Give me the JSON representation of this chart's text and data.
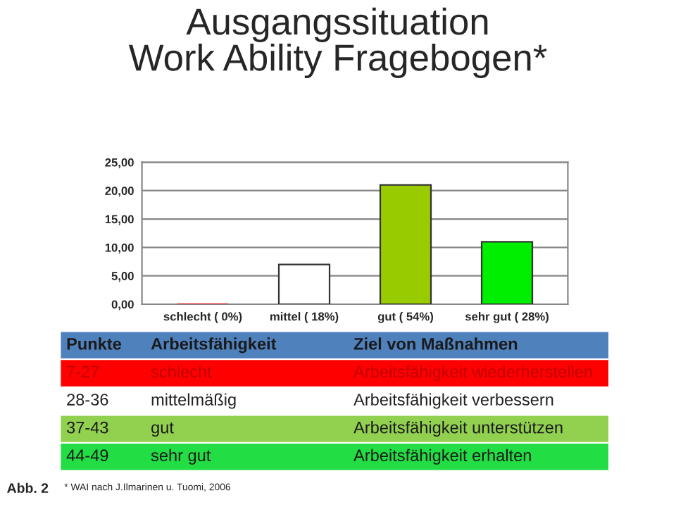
{
  "chart_data": {
    "type": "bar",
    "title": "Ausgangssituation\nWork Ability Fragebogen*",
    "categories": [
      "schlecht ( 0%)",
      "mittel ( 18%)",
      "gut ( 54%)",
      "sehr gut ( 28%)"
    ],
    "values": [
      0,
      7,
      21,
      11
    ],
    "colors": [
      "#cc0000",
      "#ffffff",
      "#99cc00",
      "#00ee00"
    ],
    "ylim": [
      0,
      25
    ],
    "yticks": [
      {
        "value": 0,
        "label": "0,00"
      },
      {
        "value": 5,
        "label": "5,00"
      },
      {
        "value": 10,
        "label": "10,00"
      },
      {
        "value": 15,
        "label": "15,00"
      },
      {
        "value": 20,
        "label": "20,00"
      },
      {
        "value": 25,
        "label": "25,00"
      }
    ],
    "grid": "y",
    "legend": false,
    "annotations": [
      "Punkte",
      "Arbeitsfähigkeit",
      "Ziel von Maßnahmen",
      "7-27",
      "schlecht",
      "Arbeitsfähigkeit wiederherstellen",
      "28-36",
      "mittelmäßig",
      "Arbeitsfähigkeit verbessern",
      "37-43",
      "gut",
      "Arbeitsfähigkeit unterstützen",
      "44-49",
      "sehr gut",
      "Arbeitsfähigkeit erhalten",
      "Abb. 2",
      "* WAI nach J.Ilmarinen u. Tuomi, 2006"
    ]
  }
}
